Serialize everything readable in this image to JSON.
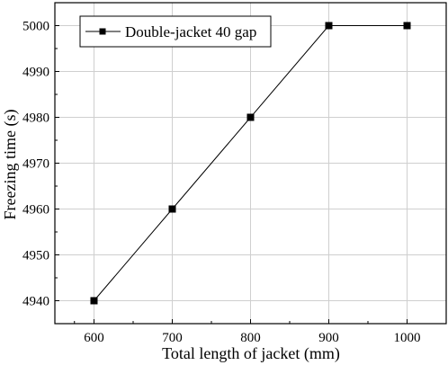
{
  "chart_data": {
    "type": "line",
    "title": "",
    "xlabel": "Total length of jacket (mm)",
    "ylabel": "Freezing time (s)",
    "x": [
      600,
      700,
      800,
      900,
      1000
    ],
    "series": [
      {
        "name": "Double-jacket 40 gap",
        "values": [
          4940,
          4960,
          4980,
          5000,
          5000
        ],
        "marker": "square",
        "color": "#000000"
      }
    ],
    "xlim": [
      550,
      1050
    ],
    "ylim": [
      4935,
      5005
    ],
    "x_ticks": [
      600,
      700,
      800,
      900,
      1000
    ],
    "y_ticks": [
      4940,
      4950,
      4960,
      4970,
      4980,
      4990,
      5000
    ],
    "grid": true,
    "legend_position": "top-left"
  }
}
